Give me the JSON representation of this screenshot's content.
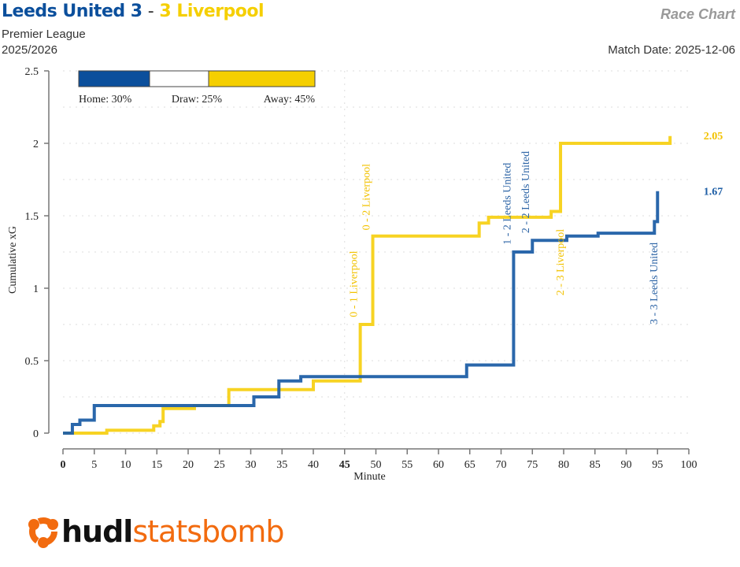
{
  "header": {
    "home_team": "Leeds United",
    "home_score": "3",
    "separator": "-",
    "away_score": "3",
    "away_team": "Liverpool",
    "competition": "Premier League",
    "season": "2025/2026",
    "chart_name": "Race Chart",
    "match_date": "Match Date: 2025-12-06"
  },
  "colors": {
    "home": "#1f5fa6",
    "away": "#f7d117",
    "home_bar": "#0b4f9c",
    "away_bar": "#f5cf00"
  },
  "probabilities": {
    "home_label": "Home: 30%",
    "draw_label": "Draw: 25%",
    "away_label": "Away: 45%",
    "home": 30,
    "draw": 25,
    "away": 45
  },
  "logo": {
    "part1": "hudl",
    "part2": "statsbomb"
  },
  "chart_data": {
    "type": "line",
    "title": "Race Chart",
    "xlabel": "Minute",
    "ylabel": "Cumulative xG",
    "xlim": [
      0,
      100
    ],
    "ylim": [
      0,
      2.5
    ],
    "xticks": [
      0,
      5,
      10,
      15,
      20,
      25,
      30,
      35,
      40,
      45,
      50,
      55,
      60,
      65,
      70,
      75,
      80,
      85,
      90,
      95,
      100
    ],
    "yticks": [
      0,
      0.5,
      1,
      1.5,
      2,
      2.5
    ],
    "ytick_labels": [
      "0",
      "0.5",
      "1",
      "1.5",
      "2",
      "2.5"
    ],
    "grid": true,
    "halftime_marker": 45,
    "series": [
      {
        "name": "Leeds United",
        "color": "#1f5fa6",
        "final_xg": "1.67",
        "steps": [
          [
            0,
            0
          ],
          [
            1.5,
            0.06
          ],
          [
            2.7,
            0.09
          ],
          [
            5,
            0.19
          ],
          [
            30.5,
            0.25
          ],
          [
            34.5,
            0.36
          ],
          [
            38,
            0.39
          ],
          [
            64.5,
            0.47
          ],
          [
            72,
            1.25
          ],
          [
            75,
            1.33
          ],
          [
            80.5,
            1.36
          ],
          [
            85.5,
            1.38
          ],
          [
            94.5,
            1.46
          ],
          [
            95,
            1.67
          ]
        ],
        "end_minute": 95
      },
      {
        "name": "Liverpool",
        "color": "#f7d117",
        "final_xg": "2.05",
        "steps": [
          [
            0,
            0
          ],
          [
            7,
            0.02
          ],
          [
            14.5,
            0.05
          ],
          [
            15.5,
            0.08
          ],
          [
            16,
            0.17
          ],
          [
            21,
            0.19
          ],
          [
            26.5,
            0.3
          ],
          [
            40,
            0.36
          ],
          [
            47.5,
            0.75
          ],
          [
            49.5,
            1.36
          ],
          [
            66.5,
            1.45
          ],
          [
            68,
            1.49
          ],
          [
            78,
            1.53
          ],
          [
            79.5,
            2.0
          ],
          [
            97,
            2.05
          ]
        ],
        "end_minute": 97
      }
    ],
    "annotations": [
      {
        "text": "0 - 1 Liverpool",
        "minute": 47.5,
        "team": "away",
        "y": 0.8
      },
      {
        "text": "0 - 2 Liverpool",
        "minute": 49.5,
        "team": "away",
        "y": 1.4
      },
      {
        "text": "1 - 2 Leeds United",
        "minute": 72,
        "team": "home",
        "y": 1.3
      },
      {
        "text": "2 - 2 Leeds United",
        "minute": 75,
        "team": "home",
        "y": 1.38
      },
      {
        "text": "2 - 3 Liverpool",
        "minute": 80.5,
        "team": "away",
        "y": 0.95
      },
      {
        "text": "3 - 3 Leeds United",
        "minute": 95.5,
        "team": "home",
        "y": 0.75
      }
    ]
  }
}
